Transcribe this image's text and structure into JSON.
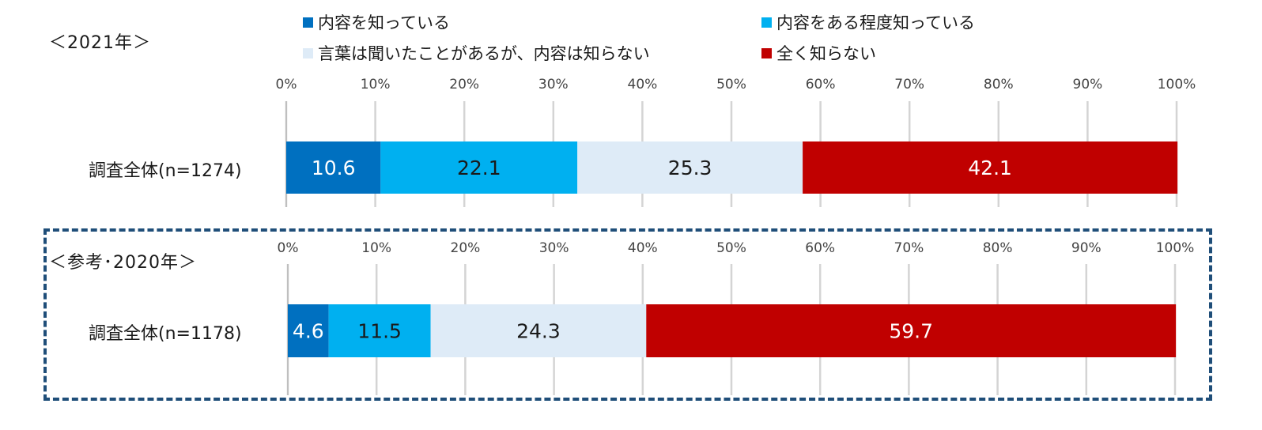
{
  "legend": [
    {
      "label": "内容を知っている",
      "color": "#0070c0"
    },
    {
      "label": "内容をある程度知っている",
      "color": "#00b0f0"
    },
    {
      "label": "言葉は聞いたことがあるが、内容は知らない",
      "color": "#deebf7"
    },
    {
      "label": "全く知らない",
      "color": "#c00000"
    }
  ],
  "panels": [
    {
      "year_label": "＜2021年＞"
    },
    {
      "year_label": "＜参考･2020年＞"
    }
  ],
  "chart_data": [
    {
      "type": "bar",
      "orientation": "horizontal",
      "stacked": true,
      "title": "＜2021年＞",
      "xlim": [
        0,
        100
      ],
      "ticks": [
        "0%",
        "10%",
        "20%",
        "30%",
        "40%",
        "50%",
        "60%",
        "70%",
        "80%",
        "90%",
        "100%"
      ],
      "categories": [
        "調査全体(n=1274)"
      ],
      "series": [
        {
          "name": "内容を知っている",
          "values": [
            10.6
          ],
          "labels": [
            "10.6"
          ],
          "color": "#0070c0",
          "text_color": "#ffffff"
        },
        {
          "name": "内容をある程度知っている",
          "values": [
            22.1
          ],
          "labels": [
            "22.1"
          ],
          "color": "#00b0f0",
          "text_color": "#1a1a1a"
        },
        {
          "name": "言葉は聞いたことがあるが、内容は知らない",
          "values": [
            25.3
          ],
          "labels": [
            "25.3"
          ],
          "color": "#deebf7",
          "text_color": "#1a1a1a"
        },
        {
          "name": "全く知らない",
          "values": [
            42.1
          ],
          "labels": [
            "42.1"
          ],
          "color": "#c00000",
          "text_color": "#ffffff"
        }
      ],
      "grid": true
    },
    {
      "type": "bar",
      "orientation": "horizontal",
      "stacked": true,
      "title": "＜参考･2020年＞",
      "xlim": [
        0,
        100
      ],
      "ticks": [
        "0%",
        "10%",
        "20%",
        "30%",
        "40%",
        "50%",
        "60%",
        "70%",
        "80%",
        "90%",
        "100%"
      ],
      "categories": [
        "調査全体(n=1178)"
      ],
      "series": [
        {
          "name": "内容を知っている",
          "values": [
            4.6
          ],
          "labels": [
            "4.6"
          ],
          "color": "#0070c0",
          "text_color": "#ffffff"
        },
        {
          "name": "内容をある程度知っている",
          "values": [
            11.5
          ],
          "labels": [
            "11.5"
          ],
          "color": "#00b0f0",
          "text_color": "#1a1a1a"
        },
        {
          "name": "言葉は聞いたことがあるが、内容は知らない",
          "values": [
            24.3
          ],
          "labels": [
            "24.3"
          ],
          "color": "#deebf7",
          "text_color": "#1a1a1a"
        },
        {
          "name": "全く知らない",
          "values": [
            59.7
          ],
          "labels": [
            "59.7"
          ],
          "color": "#c00000",
          "text_color": "#ffffff"
        }
      ],
      "grid": true
    }
  ]
}
